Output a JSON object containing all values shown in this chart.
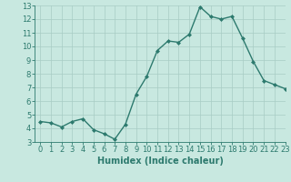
{
  "x": [
    0,
    1,
    2,
    3,
    4,
    5,
    6,
    7,
    8,
    9,
    10,
    11,
    12,
    13,
    14,
    15,
    16,
    17,
    18,
    19,
    20,
    21,
    22,
    23
  ],
  "y": [
    4.5,
    4.4,
    4.1,
    4.5,
    4.7,
    3.9,
    3.6,
    3.2,
    4.3,
    6.5,
    7.8,
    9.7,
    10.4,
    10.3,
    10.9,
    12.9,
    12.2,
    12.0,
    12.2,
    10.6,
    8.9,
    7.5,
    7.2,
    6.9
  ],
  "xlabel": "Humidex (Indice chaleur)",
  "ylim": [
    3,
    13
  ],
  "xlim": [
    -0.5,
    23
  ],
  "yticks": [
    3,
    4,
    5,
    6,
    7,
    8,
    9,
    10,
    11,
    12,
    13
  ],
  "xticks": [
    0,
    1,
    2,
    3,
    4,
    5,
    6,
    7,
    8,
    9,
    10,
    11,
    12,
    13,
    14,
    15,
    16,
    17,
    18,
    19,
    20,
    21,
    22,
    23
  ],
  "line_color": "#2d7a6e",
  "bg_color": "#c8e8e0",
  "grid_color": "#a8ccc4",
  "marker": "D",
  "markersize": 2.0,
  "linewidth": 1.0,
  "xlabel_fontsize": 7,
  "tick_fontsize": 6
}
